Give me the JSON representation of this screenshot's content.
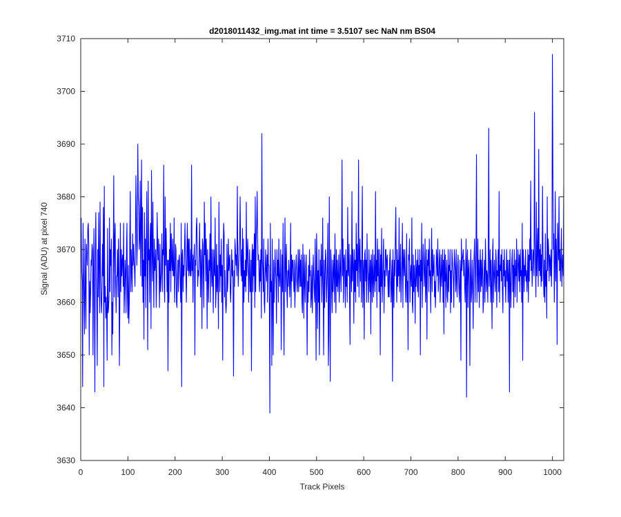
{
  "chart_data": {
    "type": "line",
    "title": "d2018011432_img.mat int time = 3.5107 sec  NaN nm BS04",
    "xlabel": "Track Pixels",
    "ylabel": "Signal (ADU) at pixel 740",
    "xlim": [
      0,
      1024
    ],
    "ylim": [
      3630,
      3710
    ],
    "xticks": [
      0,
      100,
      200,
      300,
      400,
      500,
      600,
      700,
      800,
      900,
      1000
    ],
    "yticks": [
      3630,
      3640,
      3650,
      3660,
      3670,
      3680,
      3690,
      3700,
      3710
    ],
    "grid": false,
    "series": [
      {
        "color": "#0000ff",
        "x_start": 1,
        "x_step": 1,
        "values": [
          3676,
          3666,
          3664,
          3644,
          3675,
          3666,
          3660,
          3654,
          3672,
          3663,
          3655,
          3671,
          3669,
          3667,
          3674,
          3675,
          3671,
          3650,
          3664,
          3658,
          3662,
          3668,
          3667,
          3671,
          3670,
          3650,
          3665,
          3674,
          3660,
          3643,
          3670,
          3677,
          3664,
          3660,
          3648,
          3670,
          3661,
          3677,
          3667,
          3658,
          3679,
          3665,
          3660,
          3658,
          3663,
          3671,
          3665,
          3678,
          3644,
          3682,
          3660,
          3663,
          3657,
          3661,
          3658,
          3649,
          3674,
          3658,
          3659,
          3661,
          3676,
          3662,
          3670,
          3667,
          3672,
          3650,
          3660,
          3654,
          3669,
          3684,
          3661,
          3672,
          3675,
          3664,
          3658,
          3665,
          3665,
          3670,
          3661,
          3672,
          3666,
          3648,
          3660,
          3675,
          3662,
          3670,
          3665,
          3668,
          3669,
          3663,
          3675,
          3658,
          3662,
          3668,
          3666,
          3658,
          3670,
          3675,
          3661,
          3657,
          3667,
          3656,
          3660,
          3672,
          3681,
          3662,
          3670,
          3666,
          3662,
          3673,
          3667,
          3671,
          3668,
          3666,
          3663,
          3672,
          3684,
          3675,
          3667,
          3671,
          3690,
          3680,
          3678,
          3670,
          3672,
          3683,
          3665,
          3675,
          3687,
          3663,
          3678,
          3660,
          3668,
          3653,
          3677,
          3665,
          3672,
          3659,
          3671,
          3681,
          3667,
          3651,
          3683,
          3668,
          3670,
          3660,
          3672,
          3675,
          3655,
          3685,
          3672,
          3664,
          3679,
          3668,
          3659,
          3672,
          3666,
          3667,
          3670,
          3659,
          3664,
          3677,
          3671,
          3668,
          3672,
          3666,
          3659,
          3671,
          3662,
          3664,
          3666,
          3673,
          3662,
          3670,
          3669,
          3686,
          3663,
          3660,
          3680,
          3667,
          3674,
          3669,
          3662,
          3668,
          3647,
          3668,
          3660,
          3670,
          3666,
          3675,
          3662,
          3673,
          3668,
          3666,
          3672,
          3665,
          3665,
          3676,
          3660,
          3665,
          3671,
          3670,
          3660,
          3659,
          3665,
          3668,
          3662,
          3668,
          3669,
          3667,
          3663,
          3660,
          3675,
          3644,
          3669,
          3670,
          3662,
          3667,
          3665,
          3670,
          3675,
          3668,
          3665,
          3660,
          3670,
          3675,
          3666,
          3672,
          3665,
          3672,
          3666,
          3665,
          3670,
          3665,
          3686,
          3666,
          3669,
          3660,
          3668,
          3669,
          3671,
          3650,
          3668,
          3667,
          3674,
          3676,
          3670,
          3663,
          3666,
          3665,
          3669,
          3675,
          3668,
          3661,
          3670,
          3667,
          3655,
          3672,
          3671,
          3665,
          3659,
          3679,
          3669,
          3675,
          3664,
          3672,
          3668,
          3655,
          3670,
          3665,
          3660,
          3668,
          3666,
          3673,
          3660,
          3680,
          3667,
          3663,
          3670,
          3664,
          3658,
          3670,
          3666,
          3665,
          3676,
          3659,
          3662,
          3671,
          3662,
          3667,
          3663,
          3655,
          3679,
          3668,
          3662,
          3669,
          3665,
          3672,
          3660,
          3667,
          3649,
          3669,
          3675,
          3673,
          3661,
          3666,
          3660,
          3658,
          3660,
          3671,
          3662,
          3664,
          3672,
          3666,
          3668,
          3669,
          3662,
          3660,
          3665,
          3670,
          3665,
          3668,
          3662,
          3646,
          3666,
          3663,
          3672,
          3670,
          3667,
          3669,
          3665,
          3682,
          3669,
          3663,
          3667,
          3670,
          3672,
          3680,
          3668,
          3665,
          3670,
          3664,
          3674,
          3650,
          3672,
          3660,
          3666,
          3663,
          3668,
          3662,
          3679,
          3665,
          3668,
          3672,
          3669,
          3660,
          3666,
          3670,
          3662,
          3662,
          3668,
          3647,
          3669,
          3671,
          3662,
          3670,
          3665,
          3673,
          3659,
          3680,
          3662,
          3672,
          3675,
          3681,
          3672,
          3668,
          3669,
          3665,
          3662,
          3668,
          3664,
          3670,
          3657,
          3692,
          3668,
          3666,
          3662,
          3672,
          3660,
          3658,
          3665,
          3670,
          3666,
          3664,
          3669,
          3660,
          3672,
          3667,
          3667,
          3659,
          3639,
          3675,
          3662,
          3664,
          3648,
          3672,
          3660,
          3650,
          3668,
          3660,
          3665,
          3670,
          3666,
          3664,
          3656,
          3670,
          3665,
          3668,
          3660,
          3672,
          3665,
          3663,
          3666,
          3670,
          3651,
          3663,
          3669,
          3662,
          3675,
          3660,
          3650,
          3666,
          3676,
          3662,
          3667,
          3671,
          3662,
          3659,
          3666,
          3663,
          3668,
          3666,
          3661,
          3664,
          3675,
          3659,
          3669,
          3664,
          3668,
          3668,
          3665,
          3662,
          3668,
          3659,
          3663,
          3667,
          3669,
          3664,
          3662,
          3665,
          3670,
          3662,
          3666,
          3670,
          3663,
          3668,
          3663,
          3669,
          3660,
          3658,
          3671,
          3665,
          3657,
          3669,
          3664,
          3660,
          3667,
          3669,
          3662,
          3650,
          3664,
          3660,
          3667,
          3662,
          3670,
          3665,
          3666,
          3659,
          3661,
          3667,
          3658,
          3664,
          3669,
          3665,
          3662,
          3660,
          3672,
          3662,
          3649,
          3673,
          3668,
          3655,
          3666,
          3660,
          3670,
          3650,
          3662,
          3668,
          3665,
          3671,
          3660,
          3664,
          3676,
          3662,
          3650,
          3668,
          3659,
          3665,
          3670,
          3668,
          3660,
          3663,
          3667,
          3675,
          3648,
          3654,
          3680,
          3662,
          3645,
          3670,
          3668,
          3662,
          3658,
          3668,
          3662,
          3666,
          3669,
          3660,
          3673,
          3665,
          3658,
          3670,
          3663,
          3668,
          3662,
          3665,
          3669,
          3660,
          3664,
          3670,
          3666,
          3662,
          3670,
          3687,
          3665,
          3672,
          3660,
          3668,
          3669,
          3664,
          3659,
          3670,
          3663,
          3666,
          3660,
          3678,
          3666,
          3665,
          3671,
          3660,
          3652,
          3669,
          3665,
          3662,
          3681,
          3664,
          3670,
          3667,
          3656,
          3670,
          3662,
          3668,
          3660,
          3675,
          3666,
          3671,
          3663,
          3668,
          3687,
          3661,
          3669,
          3672,
          3664,
          3668,
          3660,
          3670,
          3682,
          3659,
          3665,
          3668,
          3653,
          3669,
          3670,
          3664,
          3668,
          3660,
          3673,
          3666,
          3664,
          3660,
          3670,
          3665,
          3662,
          3668,
          3654,
          3669,
          3666,
          3660,
          3670,
          3664,
          3661,
          3669,
          3665,
          3662,
          3681,
          3664,
          3668,
          3659,
          3672,
          3665,
          3670,
          3662,
          3662,
          3670,
          3650,
          3669,
          3663,
          3674,
          3660,
          3664,
          3668,
          3672,
          3658,
          3666,
          3663,
          3670,
          3670,
          3665,
          3668,
          3669,
          3664,
          3661,
          3666,
          3661,
          3668,
          3670,
          3664,
          3660,
          3665,
          3668,
          3645,
          3670,
          3664,
          3659,
          3668,
          3665,
          3672,
          3678,
          3666,
          3660,
          3670,
          3663,
          3668,
          3665,
          3676,
          3662,
          3666,
          3671,
          3660,
          3664,
          3668,
          3675,
          3659,
          3670,
          3668,
          3665,
          3670,
          3665,
          3660,
          3664,
          3673,
          3660,
          3664,
          3651,
          3669,
          3668,
          3672,
          3660,
          3665,
          3667,
          3663,
          3676,
          3660,
          3658,
          3669,
          3662,
          3667,
          3664,
          3656,
          3670,
          3663,
          3666,
          3668,
          3662,
          3670,
          3661,
          3667,
          3665,
          3670,
          3650,
          3668,
          3664,
          3675,
          3659,
          3666,
          3671,
          3668,
          3663,
          3666,
          3672,
          3660,
          3664,
          3670,
          3653,
          3668,
          3667,
          3670,
          3662,
          3672,
          3665,
          3666,
          3658,
          3668,
          3674,
          3662,
          3670,
          3665,
          3666,
          3669,
          3661,
          3664,
          3659,
          3663,
          3670,
          3668,
          3665,
          3672,
          3662,
          3664,
          3668,
          3670,
          3660,
          3665,
          3669,
          3663,
          3666,
          3670,
          3660,
          3668,
          3654,
          3670,
          3664,
          3669,
          3659,
          3665,
          3668,
          3661,
          3660,
          3670,
          3662,
          3667,
          3666,
          3670,
          3658,
          3666,
          3660,
          3670,
          3668,
          3666,
          3664,
          3659,
          3670,
          3668,
          3666,
          3662,
          3670,
          3664,
          3661,
          3667,
          3669,
          3665,
          3662,
          3660,
          3668,
          3666,
          3649,
          3672,
          3666,
          3668,
          3669,
          3670,
          3665,
          3668,
          3663,
          3660,
          3666,
          3672,
          3642,
          3668,
          3670,
          3659,
          3666,
          3668,
          3663,
          3648,
          3665,
          3670,
          3660,
          3662,
          3668,
          3663,
          3655,
          3666,
          3669,
          3672,
          3660,
          3665,
          3670,
          3688,
          3660,
          3665,
          3672,
          3662,
          3668,
          3659,
          3666,
          3670,
          3662,
          3668,
          3663,
          3666,
          3670,
          3658,
          3660,
          3665,
          3668,
          3660,
          3672,
          3667,
          3662,
          3666,
          3665,
          3660,
          3670,
          3693,
          3663,
          3666,
          3670,
          3660,
          3668,
          3663,
          3655,
          3669,
          3672,
          3660,
          3665,
          3668,
          3664,
          3662,
          3670,
          3668,
          3659,
          3666,
          3665,
          3670,
          3662,
          3681,
          3660,
          3667,
          3666,
          3669,
          3664,
          3670,
          3662,
          3658,
          3668,
          3665,
          3670,
          3663,
          3666,
          3660,
          3665,
          3670,
          3664,
          3668,
          3660,
          3665,
          3668,
          3643,
          3670,
          3664,
          3659,
          3665,
          3668,
          3670,
          3662,
          3667,
          3659,
          3670,
          3666,
          3661,
          3668,
          3665,
          3672,
          3660,
          3666,
          3670,
          3667,
          3664,
          3669,
          3662,
          3670,
          3665,
          3666,
          3660,
          3675,
          3649,
          3670,
          3668,
          3662,
          3667,
          3665,
          3670,
          3664,
          3666,
          3662,
          3665,
          3670,
          3660,
          3669,
          3664,
          3672,
          3668,
          3683,
          3666,
          3670,
          3663,
          3666,
          3670,
          3669,
          3665,
          3696,
          3672,
          3667,
          3661,
          3679,
          3665,
          3670,
          3674,
          3663,
          3689,
          3666,
          3670,
          3665,
          3671,
          3663,
          3669,
          3664,
          3682,
          3670,
          3665,
          3661,
          3668,
          3660,
          3673,
          3663,
          3666,
          3657,
          3680,
          3666,
          3672,
          3670,
          3664,
          3669,
          3668,
          3665,
          3670,
          3663,
          3669,
          3707,
          3685,
          3670,
          3673,
          3660,
          3667,
          3681,
          3664,
          3672,
          3668,
          3652,
          3675,
          3670,
          3668,
          3680,
          3666,
          3670,
          3664,
          3668,
          3674,
          3663,
          3667,
          3669,
          3665,
          3682,
          3667,
          3672,
          3664,
          3674,
          3665,
          3668,
          3672
        ]
      }
    ]
  }
}
